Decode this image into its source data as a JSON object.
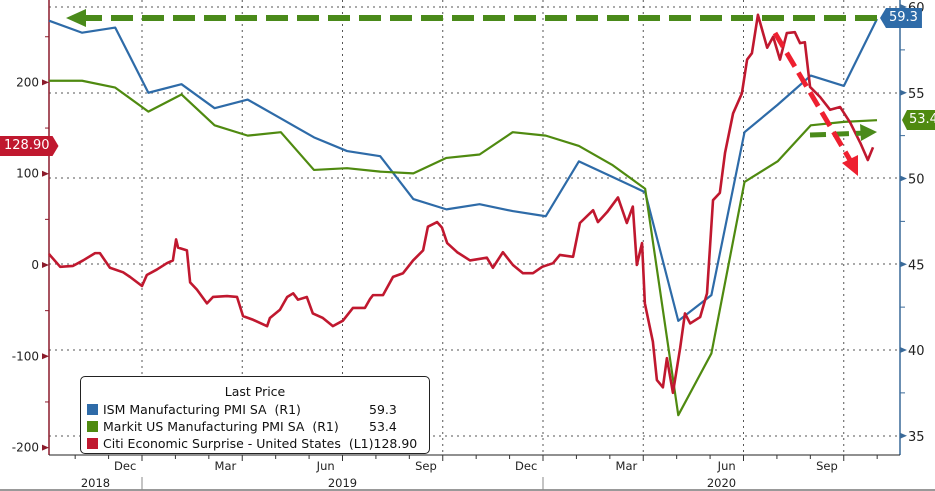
{
  "chart_data": {
    "type": "line",
    "title": "",
    "legend": {
      "title": "Last Price",
      "placement": "bottom-left",
      "entries": [
        {
          "label": "ISM Manufacturing PMI SA  (R1)",
          "last": "59.3",
          "color": "#2e6ba8"
        },
        {
          "label": "Markit US Manufacturing PMI SA  (R1)",
          "last": "53.4",
          "color": "#4f8a10"
        },
        {
          "label": "Citi Economic Surprise - United States  (L1)",
          "last": "128.90",
          "color": "#c0182f"
        }
      ]
    },
    "left_axis": {
      "range": [
        -210,
        290
      ],
      "ticks": [
        "200",
        "100",
        "0",
        "-100",
        "-200"
      ],
      "tick_values": [
        200,
        100,
        0,
        -100,
        -200
      ]
    },
    "right_axis": {
      "range": [
        33.9,
        60.4
      ],
      "ticks": [
        "60",
        "55",
        "50",
        "45",
        "40",
        "35"
      ],
      "tick_values": [
        60,
        55,
        50,
        45,
        40,
        35
      ]
    },
    "x_axis": {
      "month_labels": [
        {
          "label": "Dec",
          "at": 2018.958
        },
        {
          "label": "Mar",
          "at": 2019.208
        },
        {
          "label": "Jun",
          "at": 2019.458
        },
        {
          "label": "Sep",
          "at": 2019.708
        },
        {
          "label": "Dec",
          "at": 2019.958
        },
        {
          "label": "Mar",
          "at": 2020.208
        },
        {
          "label": "Jun",
          "at": 2020.458
        },
        {
          "label": "Sep",
          "at": 2020.708
        }
      ],
      "year_labels": [
        "2018",
        "2019",
        "2020"
      ],
      "range": [
        2018.768,
        2020.888
      ]
    },
    "grid": true,
    "series": [
      {
        "name": "ISM Manufacturing PMI SA",
        "axis": "right",
        "months": [
          "2018-09",
          "2018-10",
          "2018-11",
          "2018-12",
          "2019-01",
          "2019-02",
          "2019-03",
          "2019-04",
          "2019-05",
          "2019-06",
          "2019-07",
          "2019-08",
          "2019-09",
          "2019-10",
          "2019-11",
          "2019-12",
          "2020-01",
          "2020-02",
          "2020-03",
          "2020-04",
          "2020-05",
          "2020-06",
          "2020-07",
          "2020-08",
          "2020-09",
          "2020-10"
        ],
        "values": [
          59.2,
          58.5,
          58.8,
          55.0,
          55.5,
          54.1,
          54.6,
          53.5,
          52.4,
          51.6,
          51.3,
          48.8,
          48.2,
          48.5,
          48.1,
          47.8,
          51.0,
          50.1,
          49.2,
          41.7,
          43.2,
          52.7,
          54.3,
          56.0,
          55.4,
          59.3
        ]
      },
      {
        "name": "Markit US Manufacturing PMI SA",
        "axis": "right",
        "months": [
          "2018-09",
          "2018-10",
          "2018-11",
          "2018-12",
          "2019-01",
          "2019-02",
          "2019-03",
          "2019-04",
          "2019-05",
          "2019-06",
          "2019-07",
          "2019-08",
          "2019-09",
          "2019-10",
          "2019-11",
          "2019-12",
          "2020-01",
          "2020-02",
          "2020-03",
          "2020-04",
          "2020-05",
          "2020-06",
          "2020-07",
          "2020-08",
          "2020-09",
          "2020-10"
        ],
        "values": [
          55.7,
          55.7,
          55.3,
          53.9,
          54.9,
          53.1,
          52.5,
          52.7,
          50.5,
          50.6,
          50.4,
          50.3,
          51.2,
          51.4,
          52.7,
          52.5,
          51.9,
          50.8,
          49.4,
          36.2,
          39.8,
          49.8,
          51.0,
          53.1,
          53.3,
          53.4
        ]
      },
      {
        "name": "Citi Economic Surprise - United States",
        "axis": "left",
        "points": [
          [
            2018.768,
            12
          ],
          [
            2018.796,
            -2
          ],
          [
            2018.828,
            -1
          ],
          [
            2018.853,
            5
          ],
          [
            2018.883,
            13
          ],
          [
            2018.895,
            13
          ],
          [
            2018.92,
            -3
          ],
          [
            2018.953,
            -8
          ],
          [
            2018.97,
            -13
          ],
          [
            2019.0,
            -23
          ],
          [
            2019.012,
            -11
          ],
          [
            2019.037,
            -5
          ],
          [
            2019.062,
            2
          ],
          [
            2019.077,
            5
          ],
          [
            2019.085,
            28
          ],
          [
            2019.09,
            19
          ],
          [
            2019.112,
            16
          ],
          [
            2019.12,
            -19
          ],
          [
            2019.137,
            -27
          ],
          [
            2019.162,
            -42
          ],
          [
            2019.177,
            -35
          ],
          [
            2019.212,
            -34
          ],
          [
            2019.237,
            -35
          ],
          [
            2019.252,
            -56
          ],
          [
            2019.277,
            -60
          ],
          [
            2019.312,
            -67
          ],
          [
            2019.319,
            -58
          ],
          [
            2019.344,
            -49
          ],
          [
            2019.362,
            -35
          ],
          [
            2019.377,
            -31
          ],
          [
            2019.389,
            -38
          ],
          [
            2019.411,
            -35
          ],
          [
            2019.426,
            -53
          ],
          [
            2019.451,
            -58
          ],
          [
            2019.476,
            -67
          ],
          [
            2019.501,
            -61
          ],
          [
            2019.526,
            -47
          ],
          [
            2019.556,
            -47
          ],
          [
            2019.569,
            -37
          ],
          [
            2019.576,
            -33
          ],
          [
            2019.601,
            -33
          ],
          [
            2019.626,
            -13
          ],
          [
            2019.651,
            -9
          ],
          [
            2019.676,
            5
          ],
          [
            2019.701,
            16
          ],
          [
            2019.713,
            42
          ],
          [
            2019.736,
            47
          ],
          [
            2019.748,
            41
          ],
          [
            2019.761,
            24
          ],
          [
            2019.786,
            14
          ],
          [
            2019.818,
            5
          ],
          [
            2019.86,
            8
          ],
          [
            2019.875,
            -3
          ],
          [
            2019.9,
            14
          ],
          [
            2019.925,
            0
          ],
          [
            2019.95,
            -9
          ],
          [
            2019.975,
            -9
          ],
          [
            2019.998,
            -2
          ],
          [
            2020.025,
            2
          ],
          [
            2020.042,
            11
          ],
          [
            2020.075,
            9
          ],
          [
            2020.092,
            46
          ],
          [
            2020.125,
            60
          ],
          [
            2020.137,
            47
          ],
          [
            2020.16,
            58
          ],
          [
            2020.187,
            74
          ],
          [
            2020.209,
            46
          ],
          [
            2020.224,
            64
          ],
          [
            2020.234,
            0
          ],
          [
            2020.247,
            24
          ],
          [
            2020.254,
            -42
          ],
          [
            2020.274,
            -84
          ],
          [
            2020.284,
            -126
          ],
          [
            2020.299,
            -134
          ],
          [
            2020.309,
            -102
          ],
          [
            2020.324,
            -140
          ],
          [
            2020.342,
            -91
          ],
          [
            2020.354,
            -53
          ],
          [
            2020.367,
            -64
          ],
          [
            2020.392,
            -57
          ],
          [
            2020.409,
            -31
          ],
          [
            2020.424,
            71
          ],
          [
            2020.441,
            79
          ],
          [
            2020.454,
            123
          ],
          [
            2020.474,
            166
          ],
          [
            2020.496,
            188
          ],
          [
            2020.509,
            225
          ],
          [
            2020.521,
            232
          ],
          [
            2020.536,
            274
          ],
          [
            2020.559,
            238
          ],
          [
            2020.574,
            250
          ],
          [
            2020.591,
            225
          ],
          [
            2020.608,
            254
          ],
          [
            2020.628,
            255
          ],
          [
            2020.641,
            243
          ],
          [
            2020.653,
            244
          ],
          [
            2020.666,
            195
          ],
          [
            2020.691,
            184
          ],
          [
            2020.716,
            170
          ],
          [
            2020.741,
            173
          ],
          [
            2020.766,
            156
          ],
          [
            2020.791,
            134
          ],
          [
            2020.81,
            115
          ],
          [
            2020.823,
            128.9
          ]
        ]
      }
    ],
    "last_value_badges": {
      "ism": "59.3",
      "markit": "53.4",
      "citi": "128.90"
    }
  }
}
